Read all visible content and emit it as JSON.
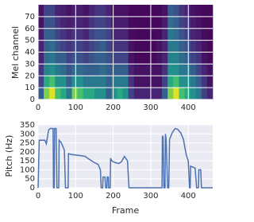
{
  "chart_data": [
    {
      "type": "heatmap",
      "ylabel": "Mel channel",
      "xlim": [
        0,
        465
      ],
      "ylim": [
        0,
        80
      ],
      "xticks": [
        0,
        100,
        200,
        300,
        400
      ],
      "yticks": [
        0,
        10,
        20,
        30,
        40,
        50,
        60,
        70
      ],
      "grid": true,
      "xbins": [
        0,
        15,
        30,
        45,
        60,
        75,
        90,
        105,
        120,
        135,
        150,
        165,
        180,
        195,
        210,
        225,
        240,
        255,
        270,
        285,
        300,
        315,
        330,
        345,
        360,
        375,
        390,
        405,
        420,
        435,
        450,
        465
      ],
      "ybins": [
        0,
        10,
        20,
        30,
        40,
        50,
        60,
        70,
        80
      ],
      "values": [
        [
          0.3,
          0.8,
          0.95,
          0.7,
          0.6,
          0.4,
          0.8,
          0.7,
          0.6,
          0.6,
          0.5,
          0.5,
          0.3,
          0.5,
          0.6,
          0.5,
          0.2,
          0.1,
          0.1,
          0.1,
          0.1,
          0.1,
          0.3,
          0.8,
          0.95,
          0.7,
          0.6,
          0.5,
          0.4,
          0.2,
          0.1
        ],
        [
          0.2,
          0.6,
          0.7,
          0.5,
          0.5,
          0.3,
          0.5,
          0.5,
          0.4,
          0.4,
          0.4,
          0.4,
          0.3,
          0.4,
          0.4,
          0.4,
          0.15,
          0.05,
          0.05,
          0.05,
          0.05,
          0.05,
          0.2,
          0.6,
          0.7,
          0.5,
          0.5,
          0.4,
          0.3,
          0.15,
          0.05
        ],
        [
          0.15,
          0.45,
          0.5,
          0.4,
          0.35,
          0.25,
          0.35,
          0.35,
          0.3,
          0.3,
          0.3,
          0.35,
          0.3,
          0.3,
          0.3,
          0.3,
          0.1,
          0.05,
          0.05,
          0.05,
          0.05,
          0.05,
          0.15,
          0.5,
          0.5,
          0.4,
          0.4,
          0.3,
          0.2,
          0.1,
          0.05
        ],
        [
          0.1,
          0.35,
          0.4,
          0.3,
          0.3,
          0.2,
          0.25,
          0.25,
          0.2,
          0.25,
          0.3,
          0.3,
          0.25,
          0.2,
          0.2,
          0.2,
          0.05,
          0.02,
          0.02,
          0.02,
          0.02,
          0.05,
          0.1,
          0.45,
          0.45,
          0.35,
          0.3,
          0.2,
          0.15,
          0.05,
          0.02
        ],
        [
          0.1,
          0.3,
          0.35,
          0.25,
          0.2,
          0.15,
          0.2,
          0.2,
          0.15,
          0.2,
          0.25,
          0.3,
          0.2,
          0.15,
          0.15,
          0.15,
          0.05,
          0.02,
          0.02,
          0.02,
          0.02,
          0.05,
          0.1,
          0.4,
          0.4,
          0.3,
          0.25,
          0.15,
          0.1,
          0.05,
          0.02
        ],
        [
          0.08,
          0.3,
          0.3,
          0.2,
          0.15,
          0.1,
          0.15,
          0.15,
          0.1,
          0.2,
          0.25,
          0.25,
          0.2,
          0.1,
          0.1,
          0.1,
          0.03,
          0.02,
          0.02,
          0.02,
          0.02,
          0.03,
          0.1,
          0.4,
          0.35,
          0.25,
          0.2,
          0.1,
          0.08,
          0.03,
          0.02
        ],
        [
          0.05,
          0.25,
          0.25,
          0.15,
          0.1,
          0.08,
          0.1,
          0.1,
          0.08,
          0.15,
          0.2,
          0.2,
          0.15,
          0.08,
          0.08,
          0.08,
          0.02,
          0.02,
          0.02,
          0.02,
          0.02,
          0.02,
          0.08,
          0.35,
          0.3,
          0.2,
          0.15,
          0.08,
          0.05,
          0.02,
          0.02
        ],
        [
          0.05,
          0.2,
          0.2,
          0.1,
          0.08,
          0.05,
          0.08,
          0.08,
          0.05,
          0.1,
          0.15,
          0.15,
          0.1,
          0.05,
          0.05,
          0.05,
          0.02,
          0.02,
          0.02,
          0.02,
          0.02,
          0.02,
          0.05,
          0.3,
          0.25,
          0.15,
          0.1,
          0.05,
          0.03,
          0.02,
          0.02
        ]
      ]
    },
    {
      "type": "line",
      "xlabel": "Frame",
      "ylabel": "Pitch (Hz)",
      "color": "#4c72b0",
      "xlim": [
        0,
        465
      ],
      "ylim": [
        0,
        350
      ],
      "xticks": [
        0,
        100,
        200,
        300,
        400
      ],
      "yticks": [
        0,
        50,
        100,
        150,
        200,
        250,
        300,
        350
      ],
      "grid": true,
      "x": [
        0,
        3,
        18,
        22,
        28,
        32,
        40,
        41,
        43,
        44,
        48,
        50,
        55,
        56,
        62,
        70,
        73,
        80,
        81,
        90,
        110,
        125,
        135,
        150,
        160,
        166,
        168,
        172,
        173,
        178,
        180,
        183,
        184,
        187,
        188,
        192,
        193,
        196,
        205,
        215,
        222,
        230,
        238,
        242,
        330,
        331,
        333,
        335,
        338,
        339,
        341,
        345,
        348,
        350,
        358,
        365,
        372,
        380,
        387,
        392,
        395,
        400,
        403,
        405,
        406,
        418,
        422,
        427,
        428,
        433,
        435,
        465
      ],
      "values": [
        0,
        265,
        265,
        245,
        320,
        330,
        330,
        0,
        0,
        330,
        330,
        0,
        0,
        265,
        250,
        210,
        0,
        0,
        190,
        185,
        180,
        175,
        160,
        140,
        130,
        100,
        0,
        0,
        60,
        60,
        0,
        0,
        60,
        60,
        0,
        0,
        165,
        150,
        140,
        135,
        145,
        175,
        150,
        0,
        0,
        290,
        280,
        0,
        0,
        300,
        270,
        0,
        0,
        270,
        310,
        330,
        325,
        305,
        270,
        210,
        180,
        150,
        0,
        0,
        120,
        110,
        0,
        0,
        100,
        100,
        0,
        0
      ]
    }
  ]
}
